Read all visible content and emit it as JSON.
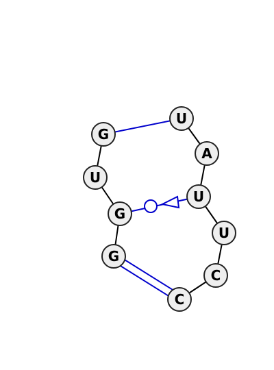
{
  "diagram": {
    "nucleotides": [
      {
        "id": "n1",
        "label": "G"
      },
      {
        "id": "n2",
        "label": "U"
      },
      {
        "id": "n3",
        "label": "U"
      },
      {
        "id": "n4",
        "label": "A"
      },
      {
        "id": "n5",
        "label": "U"
      },
      {
        "id": "n6",
        "label": "U"
      },
      {
        "id": "n7",
        "label": "C"
      },
      {
        "id": "n8",
        "label": "C"
      },
      {
        "id": "n9",
        "label": "G"
      },
      {
        "id": "n10",
        "label": "G"
      }
    ],
    "pairs": [
      {
        "from": "n1",
        "to": "n3",
        "type": "single-line"
      },
      {
        "from": "n10",
        "to": "n5",
        "type": "circle-triangle"
      },
      {
        "from": "n9",
        "to": "n8",
        "type": "double-line"
      }
    ],
    "colors": {
      "pair": "#0000cc",
      "node_fill": "#eeeeee",
      "backbone": "#000000"
    }
  }
}
